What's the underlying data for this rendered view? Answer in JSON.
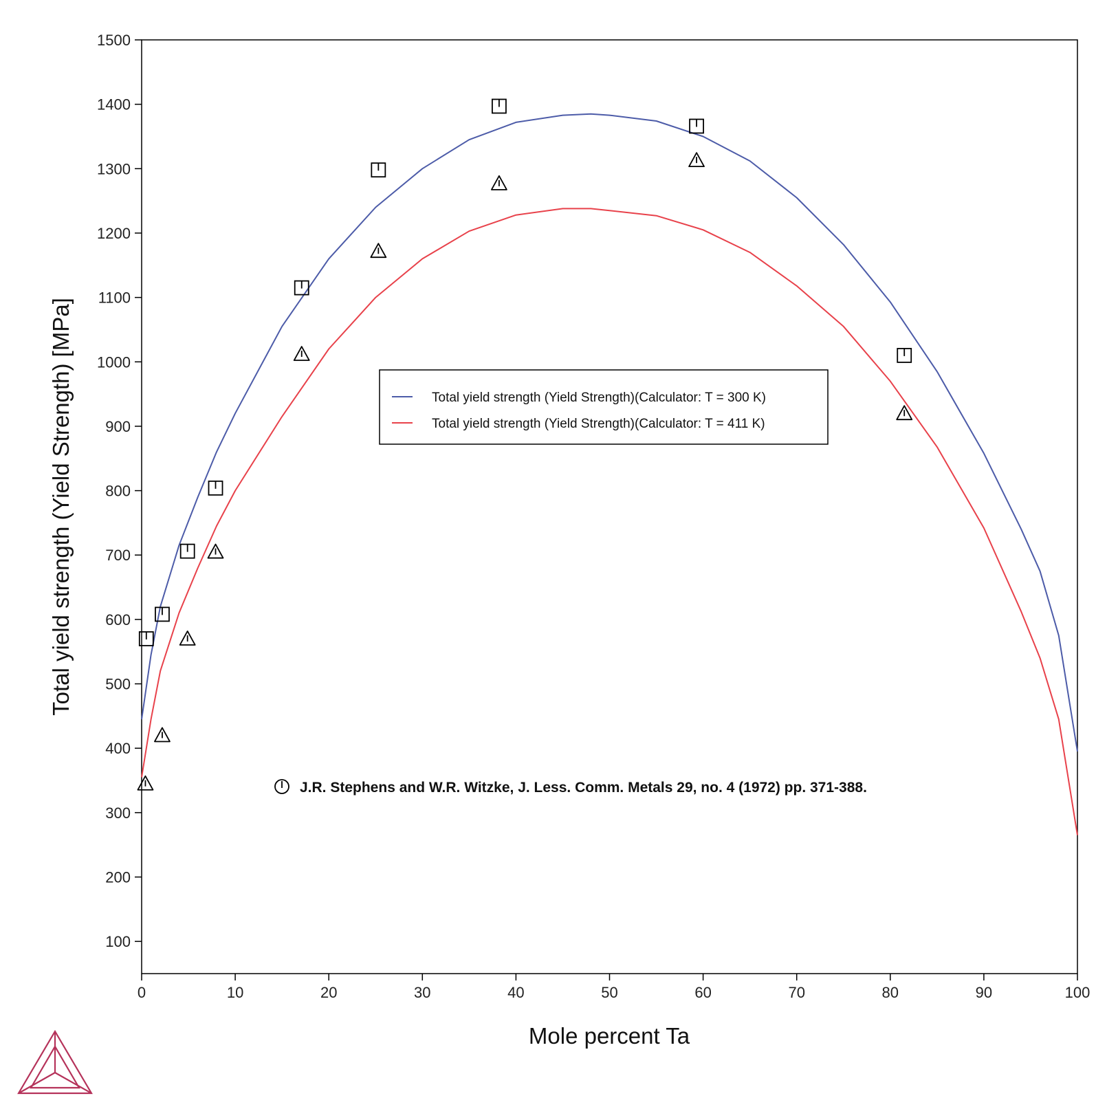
{
  "chart_data": {
    "type": "line",
    "title": "",
    "xlabel": "Mole percent Ta",
    "ylabel": "Total yield strength (Yield Strength) [MPa]",
    "xlim": [
      0,
      100
    ],
    "ylim": [
      50,
      1500
    ],
    "xticks": [
      0,
      10,
      20,
      30,
      40,
      50,
      60,
      70,
      80,
      90,
      100
    ],
    "yticks": [
      100,
      200,
      300,
      400,
      500,
      600,
      700,
      800,
      900,
      1000,
      1100,
      1200,
      1300,
      1400,
      1500
    ],
    "grid": false,
    "legend_position": "center",
    "series": [
      {
        "name": "Total yield strength (Yield Strength)(Calculator: T = 300 K)",
        "color": "#4c5ba8",
        "x": [
          0,
          1,
          2,
          4,
          6,
          8,
          10,
          15,
          20,
          25,
          30,
          35,
          40,
          45,
          48,
          50,
          55,
          60,
          65,
          70,
          75,
          80,
          85,
          90,
          94,
          96,
          98,
          100
        ],
        "y": [
          445,
          545,
          620,
          715,
          790,
          860,
          920,
          1055,
          1160,
          1240,
          1300,
          1345,
          1372,
          1383,
          1385,
          1383,
          1374,
          1350,
          1312,
          1255,
          1182,
          1093,
          985,
          858,
          740,
          675,
          575,
          395
        ]
      },
      {
        "name": "Total yield strength (Yield Strength)(Calculator: T = 411 K)",
        "color": "#e8414a",
        "x": [
          0,
          1,
          2,
          4,
          6,
          8,
          10,
          15,
          20,
          25,
          30,
          35,
          40,
          45,
          48,
          50,
          55,
          60,
          65,
          70,
          75,
          80,
          85,
          90,
          94,
          96,
          98,
          100
        ],
        "y": [
          355,
          445,
          520,
          610,
          680,
          745,
          800,
          915,
          1020,
          1100,
          1160,
          1203,
          1228,
          1238,
          1238,
          1235,
          1227,
          1205,
          1170,
          1118,
          1055,
          970,
          868,
          742,
          612,
          540,
          445,
          265
        ]
      }
    ],
    "markers": [
      {
        "name": "squares",
        "symbol": "square",
        "x": [
          0.5,
          2.2,
          4.9,
          7.9,
          17.1,
          25.3,
          38.2,
          59.3,
          81.5
        ],
        "y": [
          570,
          608,
          706,
          804,
          1115,
          1298,
          1397,
          1366,
          1010
        ]
      },
      {
        "name": "triangles",
        "symbol": "triangle",
        "x": [
          0.4,
          2.2,
          4.9,
          7.9,
          17.1,
          25.3,
          38.2,
          59.3,
          81.5
        ],
        "y": [
          345,
          420,
          570,
          705,
          1012,
          1172,
          1277,
          1313,
          920
        ]
      }
    ],
    "reference": "J.R. Stephens and W.R. Witzke, J. Less. Comm. Metals 29, no. 4 (1972) pp. 371-388."
  },
  "logo": {
    "name": "triangle-logo",
    "color": "#b5325a"
  }
}
